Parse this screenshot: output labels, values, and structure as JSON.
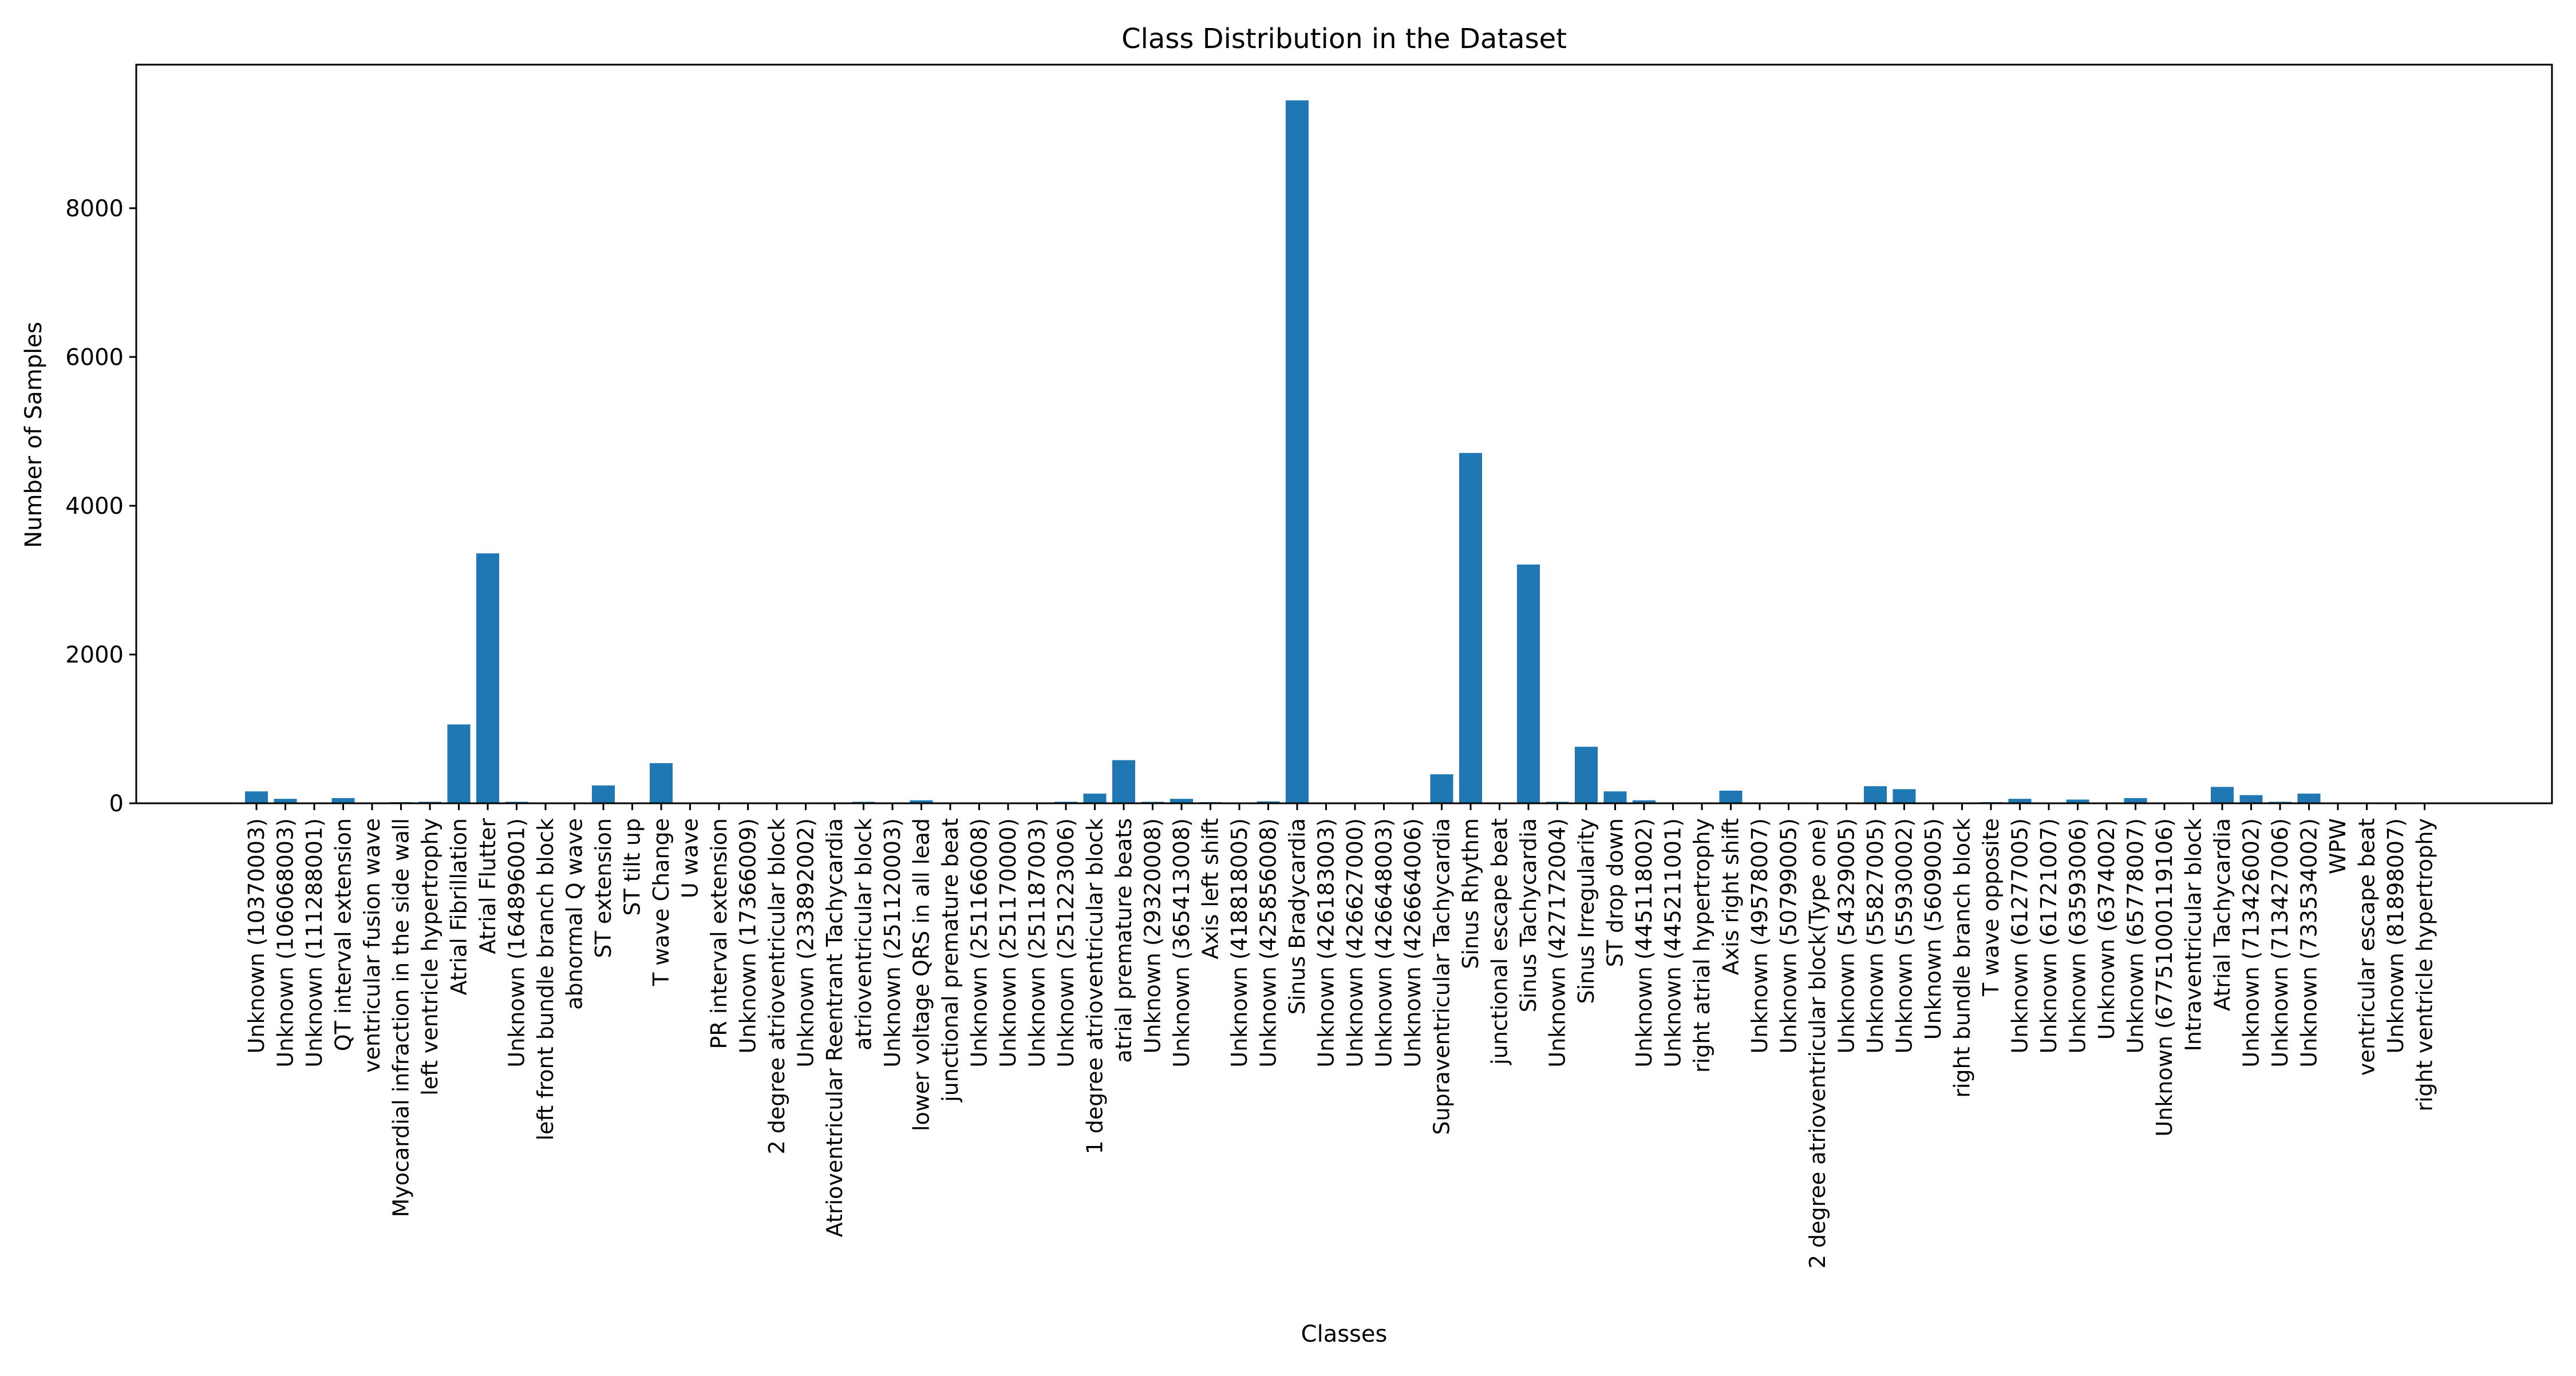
{
  "chart_data": {
    "type": "bar",
    "title": "Class Distribution in the Dataset",
    "xlabel": "Classes",
    "ylabel": "Number of Samples",
    "ylim": [
      0,
      9930
    ],
    "yticks": [
      0,
      2000,
      4000,
      6000,
      8000
    ],
    "grid": false,
    "bar_color": "#1f77b4",
    "categories": [
      "Unknown (10370003)",
      "Unknown (106068003)",
      "Unknown (111288001)",
      "QT interval extension",
      "ventricular fusion wave",
      "Myocardial infraction in the side wall",
      "left ventricle hypertrophy",
      "Atrial Fibrillation",
      "Atrial Flutter",
      "Unknown (164896001)",
      "left front bundle branch block",
      "abnormal Q wave",
      "ST extension",
      "ST tilt up",
      "T wave Change",
      "U wave",
      "PR interval extension",
      "Unknown (17366009)",
      "2 degree atrioventricular block",
      "Unknown (233892002)",
      "Atrioventricular Reentrant Tachycardia",
      "atrioventricular block",
      "Unknown (251120003)",
      "lower voltage QRS in all lead",
      "junctional premature beat",
      "Unknown (251166008)",
      "Unknown (251170000)",
      "Unknown (251187003)",
      "Unknown (251223006)",
      "1 degree atrioventricular block",
      "atrial premature beats",
      "Unknown (29320008)",
      "Unknown (365413008)",
      "Axis left shift",
      "Unknown (418818005)",
      "Unknown (425856008)",
      "Sinus Bradycardia",
      "Unknown (426183003)",
      "Unknown (426627000)",
      "Unknown (426648003)",
      "Unknown (426664006)",
      "Supraventricular Tachycardia",
      "Sinus Rhythm",
      "junctional escape beat",
      "Sinus Tachycardia",
      "Unknown (427172004)",
      "Sinus Irregularity",
      "ST drop down",
      "Unknown (445118002)",
      "Unknown (445211001)",
      "right atrial hypertrophy",
      "Axis right shift",
      "Unknown (49578007)",
      "Unknown (50799005)",
      "2 degree atrioventricular block(Type one)",
      "Unknown (54329005)",
      "Unknown (55827005)",
      "Unknown (55930002)",
      "Unknown (5609005)",
      "right bundle branch block",
      "T wave opposite",
      "Unknown (61277005)",
      "Unknown (61721007)",
      "Unknown (63593006)",
      "Unknown (6374002)",
      "Unknown (65778007)",
      "Unknown (67751000119106)",
      "Intraventricular block",
      "Atrial Tachycardia",
      "Unknown (713426002)",
      "Unknown (713427006)",
      "Unknown (733534002)",
      "WPW",
      "ventricular escape beat",
      "Unknown (81898007)",
      "right ventricle hypertrophy"
    ],
    "values": [
      160,
      60,
      5,
      70,
      5,
      15,
      20,
      1060,
      3360,
      20,
      5,
      10,
      240,
      5,
      540,
      10,
      10,
      5,
      5,
      5,
      5,
      20,
      5,
      40,
      5,
      5,
      5,
      5,
      20,
      130,
      580,
      20,
      60,
      15,
      5,
      25,
      9450,
      5,
      5,
      5,
      5,
      390,
      4710,
      5,
      3210,
      20,
      760,
      160,
      40,
      10,
      5,
      170,
      10,
      10,
      5,
      5,
      230,
      190,
      5,
      5,
      15,
      60,
      5,
      50,
      5,
      70,
      5,
      5,
      220,
      110,
      20,
      130,
      5,
      5,
      10,
      5
    ]
  }
}
